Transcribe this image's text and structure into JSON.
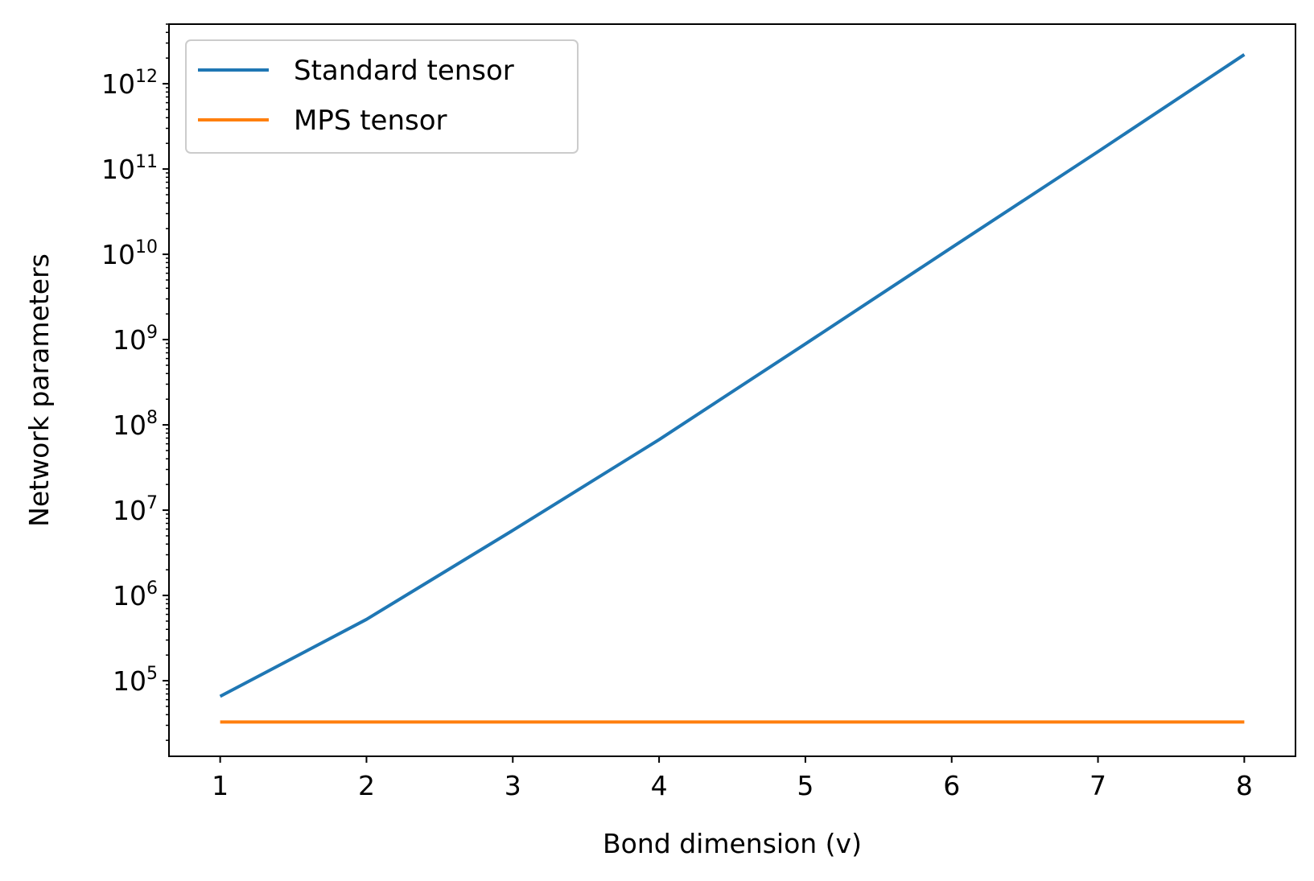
{
  "chart_data": {
    "type": "line",
    "title": "",
    "xlabel": "Bond dimension (v)",
    "ylabel": "Network parameters",
    "x": [
      1,
      2,
      3,
      4,
      5,
      6,
      7,
      8
    ],
    "xticks": [
      "1",
      "2",
      "3",
      "4",
      "5",
      "6",
      "7",
      "8"
    ],
    "xlim": [
      0.65,
      8.35
    ],
    "yscale": "log",
    "ylim": [
      13000,
      5000000000000
    ],
    "yticks": [
      {
        "value": 100000,
        "base": "10",
        "exp": "5"
      },
      {
        "value": 1000000,
        "base": "10",
        "exp": "6"
      },
      {
        "value": 10000000,
        "base": "10",
        "exp": "7"
      },
      {
        "value": 100000000,
        "base": "10",
        "exp": "8"
      },
      {
        "value": 1000000000,
        "base": "10",
        "exp": "9"
      },
      {
        "value": 10000000000,
        "base": "10",
        "exp": "10"
      },
      {
        "value": 100000000000,
        "base": "10",
        "exp": "11"
      },
      {
        "value": 1000000000000,
        "base": "10",
        "exp": "12"
      }
    ],
    "grid": false,
    "legend_position": "upper-left",
    "series": [
      {
        "name": "Standard tensor",
        "color": "#1f77b4",
        "values": [
          65536,
          524288,
          5800000,
          67108864,
          890000000,
          12000000000,
          160000000000,
          2200000000000
        ]
      },
      {
        "name": "MPS tensor",
        "color": "#ff7f0e",
        "values": [
          32768,
          32768,
          32768,
          32768,
          32768,
          32768,
          32768,
          32768
        ]
      }
    ]
  }
}
